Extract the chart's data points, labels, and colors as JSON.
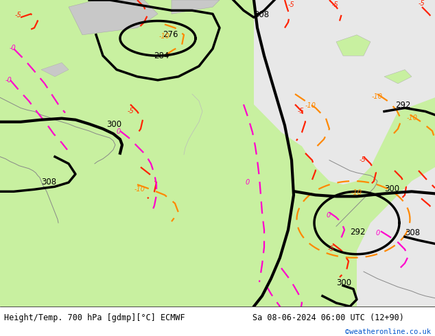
{
  "title_left": "Height/Temp. 700 hPa [gdmp][°C] ECMWF",
  "title_right": "Sa 08-06-2024 06:00 UTC (12+90)",
  "watermark": "©weatheronline.co.uk",
  "bg_land": "#c8f0a0",
  "bg_sea": "#e8e8e8",
  "bg_topo": "#c8c8c8",
  "black": "#000000",
  "red": "#ff2200",
  "orange": "#ff8800",
  "pink": "#ff00cc",
  "watermark_color": "#0055cc",
  "figsize": [
    6.34,
    4.9
  ],
  "dpi": 100
}
